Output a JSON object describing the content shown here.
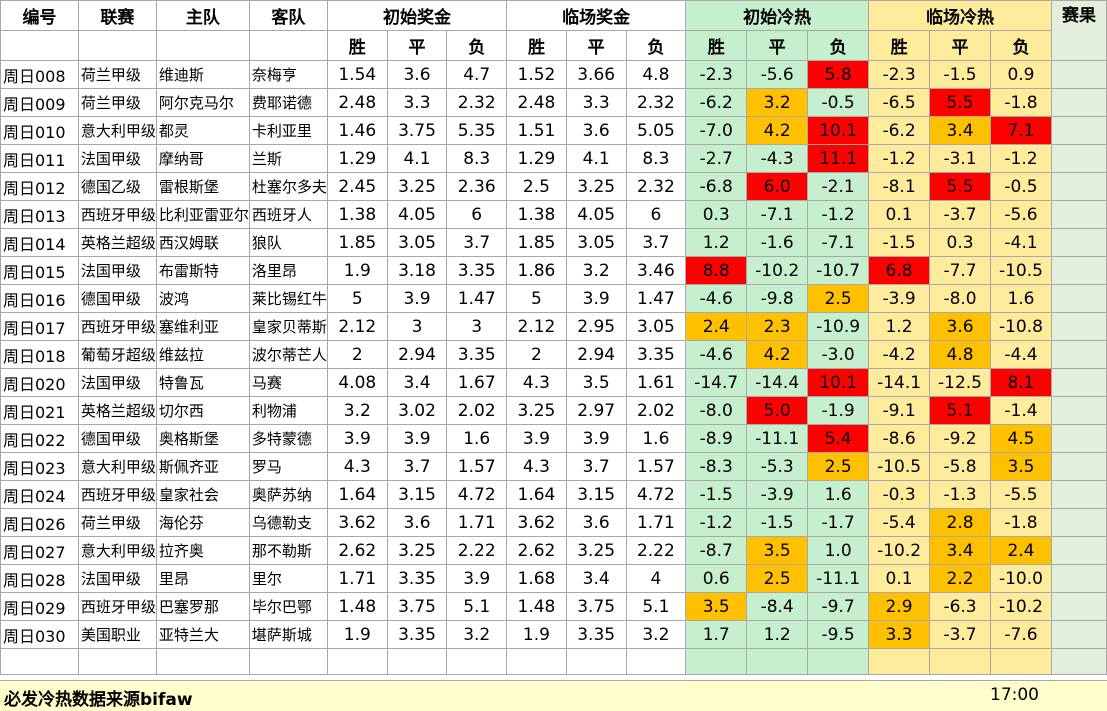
{
  "headers": {
    "code": "编号",
    "league": "联赛",
    "home": "主队",
    "away": "客队",
    "initial_prize": "初始奖金",
    "final_prize": "临场奖金",
    "initial_heat": "初始冷热",
    "final_heat": "临场冷热",
    "result": "赛果",
    "win": "胜",
    "draw": "平",
    "lose": "负"
  },
  "colors": {
    "heat_green": "#c6efce",
    "heat_yellow": "#ffeb9c",
    "orange": "#ffc000",
    "red": "#ff0000",
    "result_bg": "#e2efda",
    "footer_bg": "#ffffcc"
  },
  "rows": [
    {
      "code": "周日008",
      "league": "荷兰甲级",
      "home": "维迪斯",
      "away": "奈梅亨",
      "ip": [
        "1.54",
        "3.6",
        "4.7"
      ],
      "fp": [
        "1.52",
        "3.66",
        "4.8"
      ],
      "ih": [
        "-2.3",
        "-5.6",
        "5.8"
      ],
      "fh": [
        "-2.3",
        "-1.5",
        "0.9"
      ],
      "ihc": [
        "",
        "",
        "R"
      ],
      "fhc": [
        "",
        "",
        ""
      ]
    },
    {
      "code": "周日009",
      "league": "荷兰甲级",
      "home": "阿尔克马尔",
      "away": "费耶诺德",
      "ip": [
        "2.48",
        "3.3",
        "2.32"
      ],
      "fp": [
        "2.48",
        "3.3",
        "2.32"
      ],
      "ih": [
        "-6.2",
        "3.2",
        "-0.5"
      ],
      "fh": [
        "-6.5",
        "5.5",
        "-1.8"
      ],
      "ihc": [
        "",
        "O",
        ""
      ],
      "fhc": [
        "",
        "R",
        ""
      ]
    },
    {
      "code": "周日010",
      "league": "意大利甲级",
      "home": "都灵",
      "away": "卡利亚里",
      "ip": [
        "1.46",
        "3.75",
        "5.35"
      ],
      "fp": [
        "1.51",
        "3.6",
        "5.05"
      ],
      "ih": [
        "-7.0",
        "4.2",
        "10.1"
      ],
      "fh": [
        "-6.2",
        "3.4",
        "7.1"
      ],
      "ihc": [
        "",
        "O",
        "R"
      ],
      "fhc": [
        "",
        "O",
        "R"
      ]
    },
    {
      "code": "周日011",
      "league": "法国甲级",
      "home": "摩纳哥",
      "away": "兰斯",
      "ip": [
        "1.29",
        "4.1",
        "8.3"
      ],
      "fp": [
        "1.29",
        "4.1",
        "8.3"
      ],
      "ih": [
        "-2.7",
        "-4.3",
        "11.1"
      ],
      "fh": [
        "-1.2",
        "-3.1",
        "-1.2"
      ],
      "ihc": [
        "",
        "",
        "R"
      ],
      "fhc": [
        "",
        "",
        ""
      ]
    },
    {
      "code": "周日012",
      "league": "德国乙级",
      "home": "雷根斯堡",
      "away": "杜塞尔多夫",
      "ip": [
        "2.45",
        "3.25",
        "2.36"
      ],
      "fp": [
        "2.5",
        "3.25",
        "2.32"
      ],
      "ih": [
        "-6.8",
        "6.0",
        "-2.1"
      ],
      "fh": [
        "-8.1",
        "5.5",
        "-0.5"
      ],
      "ihc": [
        "",
        "R",
        ""
      ],
      "fhc": [
        "",
        "R",
        ""
      ]
    },
    {
      "code": "周日013",
      "league": "西班牙甲级",
      "home": "比利亚雷亚尔",
      "away": "西班牙人",
      "ip": [
        "1.38",
        "4.05",
        "6"
      ],
      "fp": [
        "1.38",
        "4.05",
        "6"
      ],
      "ih": [
        "0.3",
        "-7.1",
        "-1.2"
      ],
      "fh": [
        "0.1",
        "-3.7",
        "-5.6"
      ],
      "ihc": [
        "",
        "",
        ""
      ],
      "fhc": [
        "",
        "",
        ""
      ]
    },
    {
      "code": "周日014",
      "league": "英格兰超级",
      "home": "西汉姆联",
      "away": "狼队",
      "ip": [
        "1.85",
        "3.05",
        "3.7"
      ],
      "fp": [
        "1.85",
        "3.05",
        "3.7"
      ],
      "ih": [
        "1.2",
        "-1.6",
        "-7.1"
      ],
      "fh": [
        "-1.5",
        "0.3",
        "-4.1"
      ],
      "ihc": [
        "",
        "",
        ""
      ],
      "fhc": [
        "",
        "",
        ""
      ]
    },
    {
      "code": "周日015",
      "league": "法国甲级",
      "home": "布雷斯特",
      "away": "洛里昂",
      "ip": [
        "1.9",
        "3.18",
        "3.35"
      ],
      "fp": [
        "1.86",
        "3.2",
        "3.46"
      ],
      "ih": [
        "8.8",
        "-10.2",
        "-10.7"
      ],
      "fh": [
        "6.8",
        "-7.7",
        "-10.5"
      ],
      "ihc": [
        "R",
        "",
        ""
      ],
      "fhc": [
        "R",
        "",
        ""
      ]
    },
    {
      "code": "周日016",
      "league": "德国甲级",
      "home": "波鸿",
      "away": "莱比锡红牛",
      "ip": [
        "5",
        "3.9",
        "1.47"
      ],
      "fp": [
        "5",
        "3.9",
        "1.47"
      ],
      "ih": [
        "-4.6",
        "-9.8",
        "2.5"
      ],
      "fh": [
        "-3.9",
        "-8.0",
        "1.6"
      ],
      "ihc": [
        "",
        "",
        "O"
      ],
      "fhc": [
        "",
        "",
        ""
      ]
    },
    {
      "code": "周日017",
      "league": "西班牙甲级",
      "home": "塞维利亚",
      "away": "皇家贝蒂斯",
      "ip": [
        "2.12",
        "3",
        "3"
      ],
      "fp": [
        "2.12",
        "2.95",
        "3.05"
      ],
      "ih": [
        "2.4",
        "2.3",
        "-10.9"
      ],
      "fh": [
        "1.2",
        "3.6",
        "-10.8"
      ],
      "ihc": [
        "O",
        "O",
        ""
      ],
      "fhc": [
        "",
        "O",
        ""
      ]
    },
    {
      "code": "周日018",
      "league": "葡萄牙超级",
      "home": "维兹拉",
      "away": "波尔蒂芒人",
      "ip": [
        "2",
        "2.94",
        "3.35"
      ],
      "fp": [
        "2",
        "2.94",
        "3.35"
      ],
      "ih": [
        "-4.6",
        "4.2",
        "-3.0"
      ],
      "fh": [
        "-4.2",
        "4.8",
        "-4.4"
      ],
      "ihc": [
        "",
        "O",
        ""
      ],
      "fhc": [
        "",
        "O",
        ""
      ]
    },
    {
      "code": "周日020",
      "league": "法国甲级",
      "home": "特鲁瓦",
      "away": "马赛",
      "ip": [
        "4.08",
        "3.4",
        "1.67"
      ],
      "fp": [
        "4.3",
        "3.5",
        "1.61"
      ],
      "ih": [
        "-14.7",
        "-14.4",
        "10.1"
      ],
      "fh": [
        "-14.1",
        "-12.5",
        "8.1"
      ],
      "ihc": [
        "",
        "",
        "R"
      ],
      "fhc": [
        "",
        "",
        "R"
      ]
    },
    {
      "code": "周日021",
      "league": "英格兰超级",
      "home": "切尔西",
      "away": "利物浦",
      "ip": [
        "3.2",
        "3.02",
        "2.02"
      ],
      "fp": [
        "3.25",
        "2.97",
        "2.02"
      ],
      "ih": [
        "-8.0",
        "5.0",
        "-1.9"
      ],
      "fh": [
        "-9.1",
        "5.1",
        "-1.4"
      ],
      "ihc": [
        "",
        "R",
        ""
      ],
      "fhc": [
        "",
        "R",
        ""
      ]
    },
    {
      "code": "周日022",
      "league": "德国甲级",
      "home": "奥格斯堡",
      "away": "多特蒙德",
      "ip": [
        "3.9",
        "3.9",
        "1.6"
      ],
      "fp": [
        "3.9",
        "3.9",
        "1.6"
      ],
      "ih": [
        "-8.9",
        "-11.1",
        "5.4"
      ],
      "fh": [
        "-8.6",
        "-9.2",
        "4.5"
      ],
      "ihc": [
        "",
        "",
        "R"
      ],
      "fhc": [
        "",
        "",
        "O"
      ]
    },
    {
      "code": "周日023",
      "league": "意大利甲级",
      "home": "斯佩齐亚",
      "away": "罗马",
      "ip": [
        "4.3",
        "3.7",
        "1.57"
      ],
      "fp": [
        "4.3",
        "3.7",
        "1.57"
      ],
      "ih": [
        "-8.3",
        "-5.3",
        "2.5"
      ],
      "fh": [
        "-10.5",
        "-5.8",
        "3.5"
      ],
      "ihc": [
        "",
        "",
        "O"
      ],
      "fhc": [
        "",
        "",
        "O"
      ]
    },
    {
      "code": "周日024",
      "league": "西班牙甲级",
      "home": "皇家社会",
      "away": "奥萨苏纳",
      "ip": [
        "1.64",
        "3.15",
        "4.72"
      ],
      "fp": [
        "1.64",
        "3.15",
        "4.72"
      ],
      "ih": [
        "-1.5",
        "-3.9",
        "1.6"
      ],
      "fh": [
        "-0.3",
        "-1.3",
        "-5.5"
      ],
      "ihc": [
        "",
        "",
        ""
      ],
      "fhc": [
        "",
        "",
        ""
      ]
    },
    {
      "code": "周日026",
      "league": "荷兰甲级",
      "home": "海伦芬",
      "away": "乌德勒支",
      "ip": [
        "3.62",
        "3.6",
        "1.71"
      ],
      "fp": [
        "3.62",
        "3.6",
        "1.71"
      ],
      "ih": [
        "-1.2",
        "-1.5",
        "-1.7"
      ],
      "fh": [
        "-5.4",
        "2.8",
        "-1.8"
      ],
      "ihc": [
        "",
        "",
        ""
      ],
      "fhc": [
        "",
        "O",
        ""
      ]
    },
    {
      "code": "周日027",
      "league": "意大利甲级",
      "home": "拉齐奥",
      "away": "那不勒斯",
      "ip": [
        "2.62",
        "3.25",
        "2.22"
      ],
      "fp": [
        "2.62",
        "3.25",
        "2.22"
      ],
      "ih": [
        "-8.7",
        "3.5",
        "1.0"
      ],
      "fh": [
        "-10.2",
        "3.4",
        "2.4"
      ],
      "ihc": [
        "",
        "O",
        ""
      ],
      "fhc": [
        "",
        "O",
        "O"
      ]
    },
    {
      "code": "周日028",
      "league": "法国甲级",
      "home": "里昂",
      "away": "里尔",
      "ip": [
        "1.71",
        "3.35",
        "3.9"
      ],
      "fp": [
        "1.68",
        "3.4",
        "4"
      ],
      "ih": [
        "0.6",
        "2.5",
        "-11.1"
      ],
      "fh": [
        "0.1",
        "2.2",
        "-10.0"
      ],
      "ihc": [
        "",
        "O",
        ""
      ],
      "fhc": [
        "",
        "O",
        ""
      ]
    },
    {
      "code": "周日029",
      "league": "西班牙甲级",
      "home": "巴塞罗那",
      "away": "毕尔巴鄂",
      "ip": [
        "1.48",
        "3.75",
        "5.1"
      ],
      "fp": [
        "1.48",
        "3.75",
        "5.1"
      ],
      "ih": [
        "3.5",
        "-8.4",
        "-9.7"
      ],
      "fh": [
        "2.9",
        "-6.3",
        "-10.2"
      ],
      "ihc": [
        "O",
        "",
        ""
      ],
      "fhc": [
        "O",
        "",
        ""
      ]
    },
    {
      "code": "周日030",
      "league": "美国职业",
      "home": "亚特兰大",
      "away": "堪萨斯城",
      "ip": [
        "1.9",
        "3.35",
        "3.2"
      ],
      "fp": [
        "1.9",
        "3.35",
        "3.2"
      ],
      "ih": [
        "1.7",
        "1.2",
        "-9.5"
      ],
      "fh": [
        "3.3",
        "-3.7",
        "-7.6"
      ],
      "ihc": [
        "",
        "",
        ""
      ],
      "fhc": [
        "O",
        "",
        ""
      ]
    }
  ],
  "footer": {
    "note": "必发冷热数据来源bifaw",
    "time": "17:00"
  }
}
